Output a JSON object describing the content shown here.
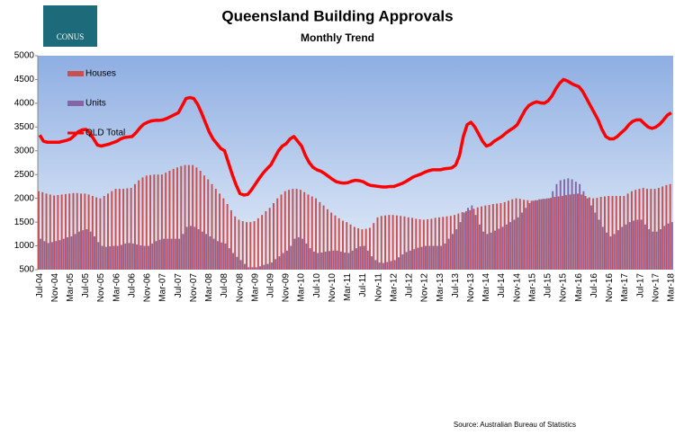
{
  "logo_text": "CONUS",
  "source": "Source: Australian Bureau of Statistics",
  "chart_data": {
    "type": "bar_line",
    "title": "Queensland Building Approvals",
    "subtitle": "Monthly Trend",
    "ylim": [
      500,
      5000
    ],
    "yticks": [
      500,
      1000,
      1500,
      2000,
      2500,
      3000,
      3500,
      4000,
      4500,
      5000
    ],
    "grid": false,
    "legend": "upper left",
    "categories": [
      "Jul-04",
      null,
      null,
      null,
      "Nov-04",
      null,
      null,
      null,
      "Mar-05",
      null,
      null,
      null,
      "Jul-05",
      null,
      null,
      null,
      "Nov-05",
      null,
      null,
      null,
      "Mar-06",
      null,
      null,
      null,
      "Jul-06",
      null,
      null,
      null,
      "Nov-06",
      null,
      null,
      null,
      "Mar-07",
      null,
      null,
      null,
      "Jul-07",
      null,
      null,
      null,
      "Nov-07",
      null,
      null,
      null,
      "Mar-08",
      null,
      null,
      null,
      "Jul-08",
      null,
      null,
      null,
      "Nov-08",
      null,
      null,
      null,
      "Mar-09",
      null,
      null,
      null,
      "Jul-09",
      null,
      null,
      null,
      "Nov-09",
      null,
      null,
      null,
      "Mar-10",
      null,
      null,
      null,
      "Jul-10",
      null,
      null,
      null,
      "Nov-10",
      null,
      null,
      null,
      "Mar-11",
      null,
      null,
      null,
      "Jul-11",
      null,
      null,
      null,
      "Nov-11",
      null,
      null,
      null,
      "Mar-12",
      null,
      null,
      null,
      "Jul-12",
      null,
      null,
      null,
      "Nov-12",
      null,
      null,
      null,
      "Mar-13",
      null,
      null,
      null,
      "Jul-13",
      null,
      null,
      null,
      "Nov-13",
      null,
      null,
      null,
      "Mar-14",
      null,
      null,
      null,
      "Jul-14",
      null,
      null,
      null,
      "Nov-14",
      null,
      null,
      null,
      "Mar-15",
      null,
      null,
      null,
      "Jul-15",
      null,
      null,
      null,
      "Nov-15",
      null,
      null,
      null,
      "Mar-16",
      null,
      null,
      null,
      "Jul-16",
      null,
      null,
      null,
      "Nov-16",
      null,
      null,
      null,
      "Mar-17",
      null,
      null,
      null,
      "Jul-17",
      null,
      null,
      null,
      "Nov-17",
      null,
      null,
      null,
      "Mar-18"
    ],
    "series": [
      {
        "name": "Houses",
        "kind": "bar",
        "color": "#c9504e",
        "values": [
          2150,
          2130,
          2100,
          2080,
          2060,
          2070,
          2080,
          2090,
          2100,
          2110,
          2110,
          2100,
          2100,
          2080,
          2050,
          2020,
          2000,
          2050,
          2100,
          2150,
          2200,
          2200,
          2200,
          2210,
          2220,
          2300,
          2380,
          2440,
          2480,
          2490,
          2500,
          2500,
          2500,
          2540,
          2580,
          2620,
          2650,
          2680,
          2700,
          2700,
          2700,
          2650,
          2580,
          2480,
          2400,
          2300,
          2200,
          2100,
          2000,
          1880,
          1750,
          1620,
          1550,
          1520,
          1500,
          1500,
          1520,
          1580,
          1650,
          1730,
          1800,
          1900,
          2000,
          2080,
          2150,
          2180,
          2200,
          2200,
          2180,
          2130,
          2080,
          2040,
          2000,
          1920,
          1850,
          1770,
          1700,
          1640,
          1580,
          1530,
          1500,
          1450,
          1400,
          1370,
          1350,
          1360,
          1380,
          1480,
          1600,
          1630,
          1640,
          1650,
          1650,
          1640,
          1630,
          1620,
          1600,
          1590,
          1570,
          1560,
          1550,
          1560,
          1570,
          1590,
          1600,
          1610,
          1620,
          1630,
          1650,
          1680,
          1710,
          1730,
          1750,
          1780,
          1810,
          1830,
          1850,
          1860,
          1880,
          1890,
          1900,
          1920,
          1950,
          1980,
          2000,
          1990,
          1970,
          1960,
          1950,
          1960,
          1980,
          1990,
          2000,
          2010,
          2030,
          2040,
          2050,
          2070,
          2080,
          2090,
          2100,
          2080,
          2050,
          2020,
          2000,
          2010,
          2030,
          2040,
          2050,
          2050,
          2050,
          2050,
          2050,
          2100,
          2150,
          2180,
          2200,
          2220,
          2200,
          2200,
          2200,
          2220,
          2250,
          2280,
          2300
        ]
      },
      {
        "name": "Units",
        "kind": "bar",
        "color": "#8266a8",
        "values": [
          1150,
          1100,
          1060,
          1080,
          1100,
          1120,
          1150,
          1180,
          1200,
          1250,
          1300,
          1330,
          1350,
          1300,
          1200,
          1080,
          1000,
          980,
          990,
          1000,
          1000,
          1020,
          1050,
          1060,
          1050,
          1030,
          1010,
          1000,
          1000,
          1050,
          1100,
          1130,
          1150,
          1150,
          1150,
          1150,
          1150,
          1250,
          1400,
          1420,
          1400,
          1350,
          1300,
          1250,
          1200,
          1150,
          1100,
          1070,
          1050,
          950,
          850,
          770,
          700,
          620,
          550,
          550,
          550,
          570,
          600,
          620,
          650,
          720,
          780,
          850,
          900,
          1000,
          1150,
          1180,
          1150,
          1050,
          950,
          880,
          850,
          860,
          880,
          890,
          900,
          900,
          880,
          860,
          850,
          900,
          950,
          990,
          1000,
          900,
          780,
          700,
          650,
          640,
          660,
          680,
          700,
          760,
          820,
          870,
          900,
          930,
          960,
          980,
          1000,
          1000,
          1000,
          1000,
          1000,
          1050,
          1150,
          1250,
          1350,
          1500,
          1700,
          1800,
          1850,
          1650,
          1450,
          1300,
          1250,
          1280,
          1320,
          1360,
          1400,
          1450,
          1500,
          1550,
          1600,
          1700,
          1800,
          1900,
          1950,
          1960,
          1980,
          1990,
          2000,
          2150,
          2300,
          2380,
          2400,
          2420,
          2400,
          2350,
          2300,
          2150,
          2000,
          1850,
          1700,
          1550,
          1400,
          1280,
          1200,
          1250,
          1330,
          1400,
          1450,
          1500,
          1530,
          1550,
          1550,
          1450,
          1350,
          1300,
          1300,
          1350,
          1420,
          1470,
          1500
        ]
      },
      {
        "name": "QLD Total",
        "kind": "line",
        "color": "#ff0000",
        "values": [
          3330,
          3200,
          3180,
          3180,
          3180,
          3180,
          3200,
          3220,
          3250,
          3320,
          3400,
          3440,
          3450,
          3380,
          3250,
          3120,
          3100,
          3120,
          3140,
          3170,
          3200,
          3250,
          3280,
          3290,
          3300,
          3380,
          3480,
          3560,
          3600,
          3630,
          3640,
          3640,
          3650,
          3680,
          3720,
          3760,
          3800,
          3950,
          4100,
          4120,
          4100,
          3980,
          3800,
          3600,
          3400,
          3250,
          3150,
          3050,
          3000,
          2750,
          2500,
          2280,
          2100,
          2070,
          2080,
          2180,
          2300,
          2420,
          2530,
          2620,
          2700,
          2850,
          3000,
          3100,
          3150,
          3250,
          3300,
          3200,
          3100,
          2900,
          2750,
          2650,
          2600,
          2570,
          2520,
          2460,
          2400,
          2350,
          2330,
          2320,
          2330,
          2360,
          2380,
          2370,
          2350,
          2300,
          2270,
          2260,
          2250,
          2240,
          2240,
          2250,
          2250,
          2280,
          2310,
          2350,
          2400,
          2450,
          2480,
          2510,
          2550,
          2580,
          2600,
          2600,
          2600,
          2620,
          2630,
          2640,
          2700,
          2900,
          3300,
          3550,
          3600,
          3500,
          3350,
          3200,
          3100,
          3130,
          3200,
          3250,
          3300,
          3370,
          3430,
          3480,
          3550,
          3700,
          3850,
          3950,
          4000,
          4030,
          4010,
          4000,
          4050,
          4150,
          4300,
          4420,
          4500,
          4470,
          4420,
          4380,
          4350,
          4250,
          4100,
          3950,
          3800,
          3650,
          3450,
          3300,
          3250,
          3250,
          3300,
          3380,
          3450,
          3550,
          3620,
          3650,
          3650,
          3570,
          3500,
          3470,
          3500,
          3560,
          3650,
          3750,
          3800
        ]
      }
    ]
  }
}
